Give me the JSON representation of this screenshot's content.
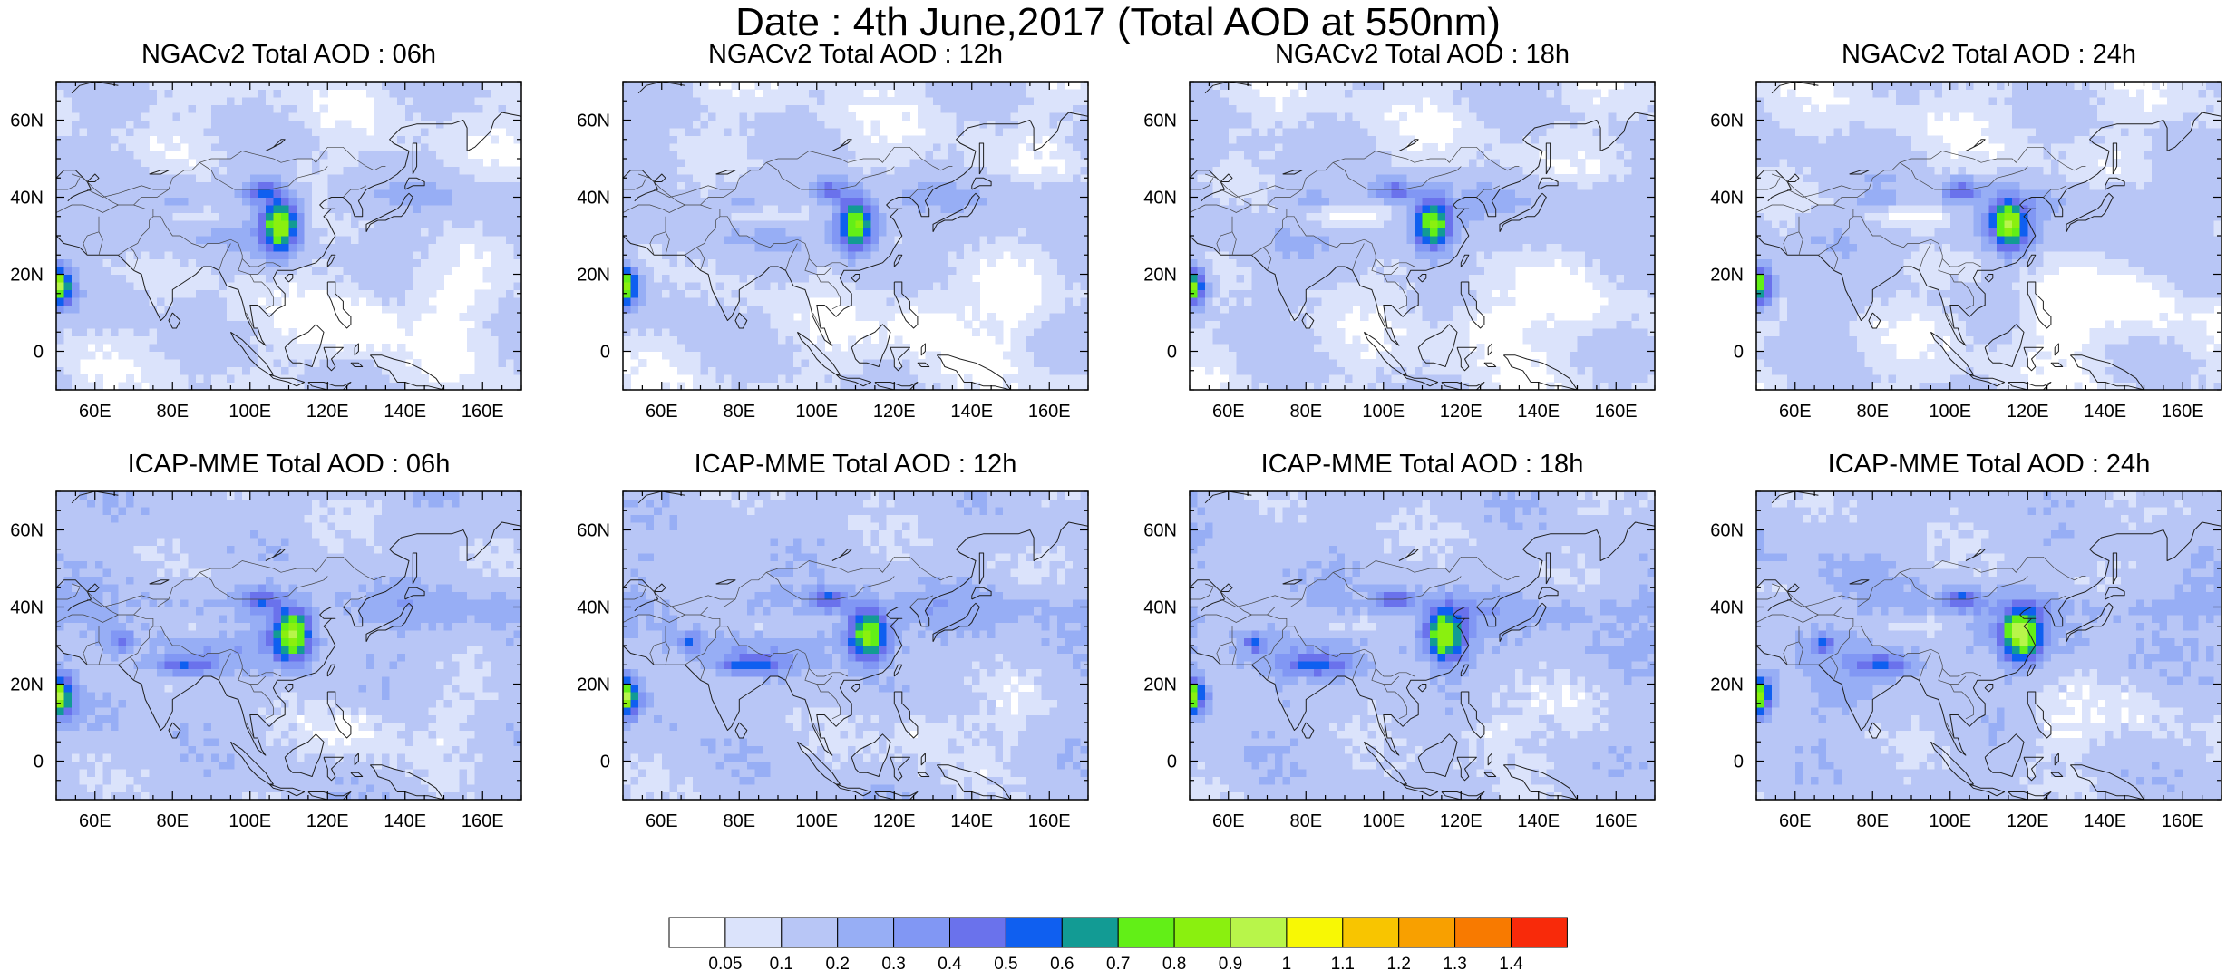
{
  "figure": {
    "title": "Date : 4th June,2017 (Total AOD at 550nm)"
  },
  "axes": {
    "lon_ticks": [
      60,
      80,
      100,
      120,
      140,
      160
    ],
    "lat_ticks": [
      0,
      20,
      40,
      60
    ],
    "lon_labels": [
      "60E",
      "80E",
      "100E",
      "120E",
      "140E",
      "160E"
    ],
    "lat_labels": [
      "0",
      "20N",
      "40N",
      "60N"
    ],
    "lon_range": [
      50,
      170
    ],
    "lat_range": [
      -10,
      70
    ]
  },
  "panels": [
    {
      "title": "NGACv2 Total AOD : 06h",
      "model": "ngac",
      "lead": 6
    },
    {
      "title": "NGACv2 Total AOD : 12h",
      "model": "ngac",
      "lead": 12
    },
    {
      "title": "NGACv2 Total AOD : 18h",
      "model": "ngac",
      "lead": 18
    },
    {
      "title": "NGACv2 Total AOD : 24h",
      "model": "ngac",
      "lead": 24
    },
    {
      "title": "ICAP-MME Total AOD : 06h",
      "model": "icap",
      "lead": 6
    },
    {
      "title": "ICAP-MME Total AOD : 12h",
      "model": "icap",
      "lead": 12
    },
    {
      "title": "ICAP-MME Total AOD : 18h",
      "model": "icap",
      "lead": 18
    },
    {
      "title": "ICAP-MME Total AOD : 24h",
      "model": "icap",
      "lead": 24
    }
  ],
  "colorbar": {
    "colors": [
      "#ffffff",
      "#dbe3fb",
      "#b8c6f6",
      "#97aef5",
      "#8197f4",
      "#6a72ec",
      "#0f5ff0",
      "#129b94",
      "#62ef17",
      "#8af00f",
      "#b8f54a",
      "#f8f804",
      "#f8c500",
      "#f8a000",
      "#f87a00",
      "#f82a0a"
    ],
    "labels": [
      "0.05",
      "0.1",
      "0.2",
      "0.3",
      "0.4",
      "0.5",
      "0.6",
      "0.7",
      "0.8",
      "0.9",
      "1",
      "1.1",
      "1.2",
      "1.3",
      "1.4"
    ]
  }
}
